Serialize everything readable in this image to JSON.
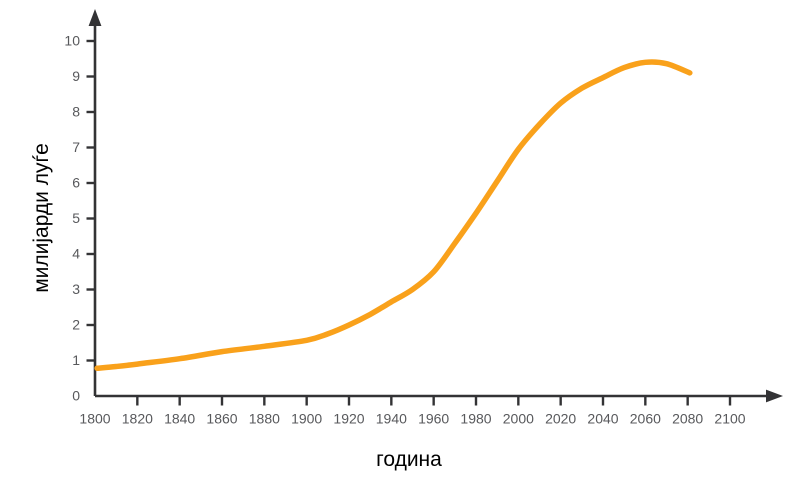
{
  "figure": {
    "background": "#FFFFFF"
  },
  "chart_data": {
    "type": "line",
    "title": "",
    "xlabel": "година",
    "ylabel": "милијарди луѓе",
    "xlim": [
      1800,
      2100
    ],
    "ylim": [
      0,
      10
    ],
    "x_ticks": [
      1800,
      1820,
      1840,
      1860,
      1880,
      1900,
      1920,
      1940,
      1960,
      1980,
      2000,
      2020,
      2040,
      2060,
      2080,
      2100
    ],
    "y_ticks": [
      0,
      1,
      2,
      3,
      4,
      5,
      6,
      7,
      8,
      9,
      10
    ],
    "grid": false,
    "legend": "none",
    "axes_arrows": true,
    "series": [
      {
        "points": [
          [
            1801,
            0.78
          ],
          [
            1810,
            0.83
          ],
          [
            1820,
            0.9
          ],
          [
            1840,
            1.05
          ],
          [
            1860,
            1.25
          ],
          [
            1880,
            1.4
          ],
          [
            1900,
            1.57
          ],
          [
            1910,
            1.75
          ],
          [
            1920,
            2.0
          ],
          [
            1930,
            2.3
          ],
          [
            1940,
            2.65
          ],
          [
            1950,
            3.0
          ],
          [
            1960,
            3.5
          ],
          [
            1970,
            4.3
          ],
          [
            1980,
            5.15
          ],
          [
            1990,
            6.05
          ],
          [
            2000,
            6.95
          ],
          [
            2010,
            7.65
          ],
          [
            2020,
            8.25
          ],
          [
            2030,
            8.67
          ],
          [
            2040,
            8.97
          ],
          [
            2050,
            9.25
          ],
          [
            2060,
            9.4
          ],
          [
            2070,
            9.36
          ],
          [
            2081,
            9.1
          ]
        ],
        "color": "#F9A11B",
        "line_width": 5.5
      }
    ],
    "colors": {
      "axis": "#333335",
      "tick_labels": "#58595C",
      "axis_titles": "#000000"
    }
  }
}
